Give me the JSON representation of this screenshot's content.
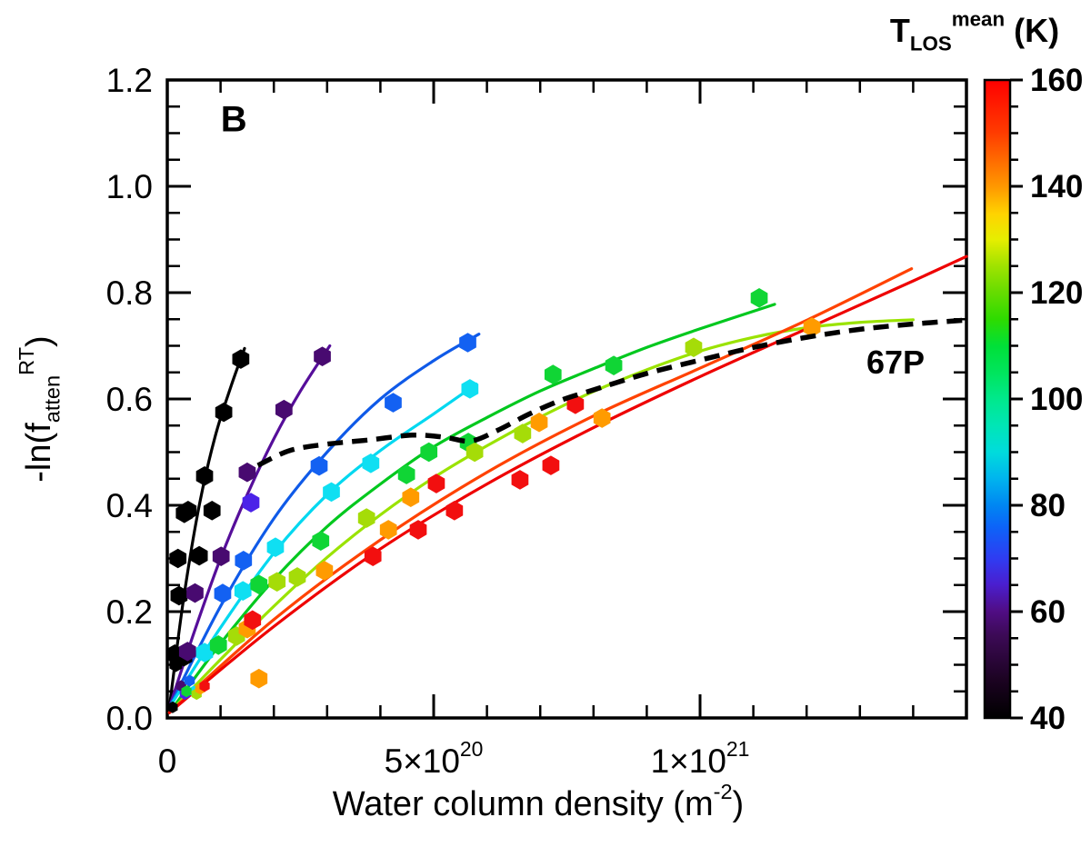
{
  "figure": {
    "panel_label": "B",
    "xlabel": "Water column density (m^{-2})",
    "ylabel": "-ln(f_{atten}^{RT})",
    "colorbar_title": "T_{LOS}^{mean} (K)"
  },
  "chart_data": {
    "type": "scatter",
    "title": "",
    "xlabel": "Water column density (m^-2)",
    "ylabel": "-ln(f_atten^RT)",
    "x_units_note": "x values below are in 1e20 m^-2 as read from the axis",
    "xlim": [
      0,
      15
    ],
    "ylim": [
      0,
      1.2
    ],
    "grid": false,
    "x_ticks": [
      {
        "v": 0,
        "label": "0"
      },
      {
        "v": 5,
        "label": "5×10^{20}"
      },
      {
        "v": 10,
        "label": "1×10^{21}"
      }
    ],
    "x_minor_step": 1,
    "y_major_step": 0.2,
    "y_minor_step": 0.05,
    "y_tick_labels": [
      "0.0",
      "0.2",
      "0.4",
      "0.6",
      "0.8",
      "1.0",
      "1.2"
    ],
    "annotations": [
      {
        "text": "B",
        "x": 1.25,
        "y": 1.127,
        "bold": true,
        "size": 40
      },
      {
        "text": "67P",
        "x": 13.67,
        "y": 0.672,
        "bold": true,
        "size": 36
      }
    ],
    "colorbar": {
      "title": "T_LOS^mean (K)",
      "min": 40,
      "max": 160,
      "major_tick_step": 20,
      "minor_tick_step": 5,
      "tick_labels": [
        "160",
        "140",
        "120",
        "100",
        "80",
        "60",
        "40"
      ],
      "gradient_stops": [
        [
          0,
          "#000000"
        ],
        [
          0.06,
          "#1c0322"
        ],
        [
          0.13,
          "#3c0a56"
        ],
        [
          0.167,
          "#500d84"
        ],
        [
          0.21,
          "#4a1fd0"
        ],
        [
          0.25,
          "#2f3cf2"
        ],
        [
          0.3,
          "#0c64f8"
        ],
        [
          0.333,
          "#0086f2"
        ],
        [
          0.375,
          "#00b4ee"
        ],
        [
          0.417,
          "#00dcdc"
        ],
        [
          0.46,
          "#00e6b4"
        ],
        [
          0.5,
          "#00e88c"
        ],
        [
          0.54,
          "#00e55e"
        ],
        [
          0.583,
          "#00e038"
        ],
        [
          0.625,
          "#2edb00"
        ],
        [
          0.667,
          "#66dc00"
        ],
        [
          0.71,
          "#a2e300"
        ],
        [
          0.75,
          "#e6ee00"
        ],
        [
          0.79,
          "#ffd300"
        ],
        [
          0.833,
          "#ff9800"
        ],
        [
          0.875,
          "#ff6a00"
        ],
        [
          0.917,
          "#ff3c00"
        ],
        [
          1,
          "#ff0000"
        ]
      ]
    },
    "series": [
      {
        "name": "black-40K",
        "temperature_K": 40,
        "color": "#000000",
        "curve_color": "#000000",
        "points": [
          [
            0.1,
            0.02,
            6.5
          ],
          [
            0.16,
            0.1,
            8
          ],
          [
            0.14,
            0.12
          ],
          [
            0.31,
            0.115
          ],
          [
            0.22,
            0.23
          ],
          [
            0.2,
            0.3
          ],
          [
            0.6,
            0.305
          ],
          [
            0.32,
            0.385
          ],
          [
            0.39,
            0.39
          ],
          [
            0.84,
            0.39
          ],
          [
            0.7,
            0.455
          ],
          [
            1.06,
            0.575
          ],
          [
            1.38,
            0.675
          ]
        ],
        "curve": [
          [
            0.04,
            0.02
          ],
          [
            0.3,
            0.22
          ],
          [
            0.6,
            0.4
          ],
          [
            0.9,
            0.53
          ],
          [
            1.2,
            0.625
          ],
          [
            1.45,
            0.695
          ]
        ]
      },
      {
        "name": "dark-purple-55K",
        "temperature_K": 55,
        "color": "#480a70",
        "curve_color": "#560e9a",
        "points": [
          [
            0.26,
            0.06,
            6.5
          ],
          [
            0.38,
            0.125
          ],
          [
            0.52,
            0.235
          ],
          [
            1.01,
            0.304
          ],
          [
            1.5,
            0.462
          ],
          [
            2.19,
            0.58
          ],
          [
            2.91,
            0.68
          ]
        ],
        "curve": [
          [
            0.04,
            0.02
          ],
          [
            0.5,
            0.16
          ],
          [
            1.0,
            0.3
          ],
          [
            1.5,
            0.42
          ],
          [
            2.0,
            0.525
          ],
          [
            2.5,
            0.615
          ],
          [
            3.05,
            0.7
          ]
        ]
      },
      {
        "name": "indigo-65K",
        "temperature_K": 65,
        "color": "#4b22e8",
        "curve_color": null,
        "points": [
          [
            0.33,
            0.045,
            6.5
          ],
          [
            1.57,
            0.405
          ]
        ],
        "curve": []
      },
      {
        "name": "blue-75K",
        "temperature_K": 75,
        "color": "#1361f2",
        "curve_color": "#0f5ae8",
        "points": [
          [
            0.42,
            0.07,
            6.5
          ],
          [
            1.04,
            0.234
          ],
          [
            1.43,
            0.296
          ],
          [
            2.85,
            0.474
          ],
          [
            4.24,
            0.593
          ],
          [
            5.64,
            0.706
          ]
        ],
        "curve": [
          [
            0.04,
            0.02
          ],
          [
            1,
            0.21
          ],
          [
            2,
            0.375
          ],
          [
            3,
            0.5
          ],
          [
            4,
            0.6
          ],
          [
            5,
            0.672
          ],
          [
            5.85,
            0.722
          ]
        ]
      },
      {
        "name": "cyan-85K",
        "temperature_K": 85,
        "color": "#0fdff2",
        "curve_color": "#00d8f0",
        "points": [
          [
            0.5,
            0.05,
            6.5
          ],
          [
            0.7,
            0.123
          ],
          [
            1.42,
            0.239
          ],
          [
            2.03,
            0.321
          ],
          [
            3.08,
            0.425
          ],
          [
            3.82,
            0.479
          ],
          [
            5.68,
            0.619
          ]
        ],
        "curve": [
          [
            0.04,
            0.02
          ],
          [
            1,
            0.17
          ],
          [
            2,
            0.31
          ],
          [
            3,
            0.42
          ],
          [
            4,
            0.503
          ],
          [
            5,
            0.572
          ],
          [
            5.8,
            0.628
          ]
        ]
      },
      {
        "name": "green-100K",
        "temperature_K": 100,
        "color": "#10d535",
        "curve_color": "#00c81e",
        "points": [
          [
            0.36,
            0.05,
            6.5
          ],
          [
            0.96,
            0.137
          ],
          [
            1.72,
            0.251
          ],
          [
            2.88,
            0.333
          ],
          [
            4.49,
            0.458
          ],
          [
            4.91,
            0.5
          ],
          [
            5.65,
            0.518
          ],
          [
            7.24,
            0.646
          ],
          [
            8.38,
            0.663
          ],
          [
            11.11,
            0.79
          ]
        ],
        "curve": [
          [
            0.04,
            0.01
          ],
          [
            1,
            0.14
          ],
          [
            2,
            0.26
          ],
          [
            3,
            0.36
          ],
          [
            4,
            0.44
          ],
          [
            5,
            0.51
          ],
          [
            6,
            0.565
          ],
          [
            7,
            0.615
          ],
          [
            8,
            0.657
          ],
          [
            9,
            0.697
          ],
          [
            10,
            0.732
          ],
          [
            11.4,
            0.778
          ]
        ]
      },
      {
        "name": "chartreuse-115K",
        "temperature_K": 115,
        "color": "#a5dc08",
        "curve_color": "#9ae300",
        "points": [
          [
            0.55,
            0.045,
            6.5
          ],
          [
            1.3,
            0.154
          ],
          [
            2.06,
            0.256
          ],
          [
            2.44,
            0.265
          ],
          [
            3.74,
            0.376
          ],
          [
            5.77,
            0.5
          ],
          [
            6.67,
            0.535
          ],
          [
            9.88,
            0.697
          ]
        ],
        "curve": [
          [
            0.04,
            0.01
          ],
          [
            1,
            0.11
          ],
          [
            2,
            0.21
          ],
          [
            3,
            0.302
          ],
          [
            4,
            0.382
          ],
          [
            5,
            0.452
          ],
          [
            6,
            0.512
          ],
          [
            7,
            0.566
          ],
          [
            8,
            0.614
          ],
          [
            9,
            0.655
          ],
          [
            10,
            0.69
          ],
          [
            11,
            0.716
          ],
          [
            12,
            0.734
          ],
          [
            13,
            0.744
          ],
          [
            14,
            0.749
          ]
        ]
      },
      {
        "name": "orange-135K",
        "temperature_K": 135,
        "color": "#ff9b00",
        "curve_color": null,
        "points": [
          [
            0.62,
            0.055,
            6.5
          ],
          [
            1.5,
            0.168
          ],
          [
            1.72,
            0.074
          ],
          [
            2.95,
            0.277
          ],
          [
            4.15,
            0.354
          ],
          [
            4.57,
            0.415
          ],
          [
            6.98,
            0.556
          ],
          [
            8.16,
            0.564
          ],
          [
            12.1,
            0.735
          ]
        ],
        "curve": []
      },
      {
        "name": "orange-red-fit-145K",
        "temperature_K": 145,
        "color": "#ff4200",
        "curve_color": "#ff4200",
        "points": [],
        "curve": [
          [
            0.04,
            0.01
          ],
          [
            2,
            0.185
          ],
          [
            4,
            0.335
          ],
          [
            6,
            0.462
          ],
          [
            8,
            0.568
          ],
          [
            10,
            0.658
          ],
          [
            12,
            0.748
          ],
          [
            13.97,
            0.845
          ]
        ]
      },
      {
        "name": "red-155K",
        "temperature_K": 155,
        "color": "#f20f0f",
        "curve_color": "#ee0000",
        "points": [
          [
            0.7,
            0.06,
            6.5
          ],
          [
            1.6,
            0.184
          ],
          [
            3.86,
            0.304
          ],
          [
            4.71,
            0.354
          ],
          [
            5.05,
            0.441
          ],
          [
            5.39,
            0.39
          ],
          [
            6.62,
            0.448
          ],
          [
            7.2,
            0.475
          ],
          [
            7.66,
            0.59
          ]
        ],
        "curve": [
          [
            0.04,
            0.01
          ],
          [
            2,
            0.172
          ],
          [
            4,
            0.318
          ],
          [
            6,
            0.44
          ],
          [
            8,
            0.546
          ],
          [
            10,
            0.642
          ],
          [
            12,
            0.732
          ],
          [
            14,
            0.822
          ],
          [
            15,
            0.868
          ]
        ]
      }
    ],
    "model_curve": {
      "name": "67P",
      "color": "#000000",
      "dashed": true,
      "curve": [
        [
          1.7,
          0.475
        ],
        [
          2.3,
          0.503
        ],
        [
          3.0,
          0.515
        ],
        [
          3.8,
          0.523
        ],
        [
          4.6,
          0.532
        ],
        [
          5.2,
          0.528
        ],
        [
          5.7,
          0.521
        ],
        [
          6.2,
          0.541
        ],
        [
          6.8,
          0.572
        ],
        [
          7.4,
          0.598
        ],
        [
          8.0,
          0.617
        ],
        [
          9.0,
          0.648
        ],
        [
          10.0,
          0.673
        ],
        [
          11.0,
          0.697
        ],
        [
          12.0,
          0.716
        ],
        [
          13.0,
          0.731
        ],
        [
          14.0,
          0.741
        ],
        [
          14.95,
          0.748
        ]
      ]
    }
  }
}
